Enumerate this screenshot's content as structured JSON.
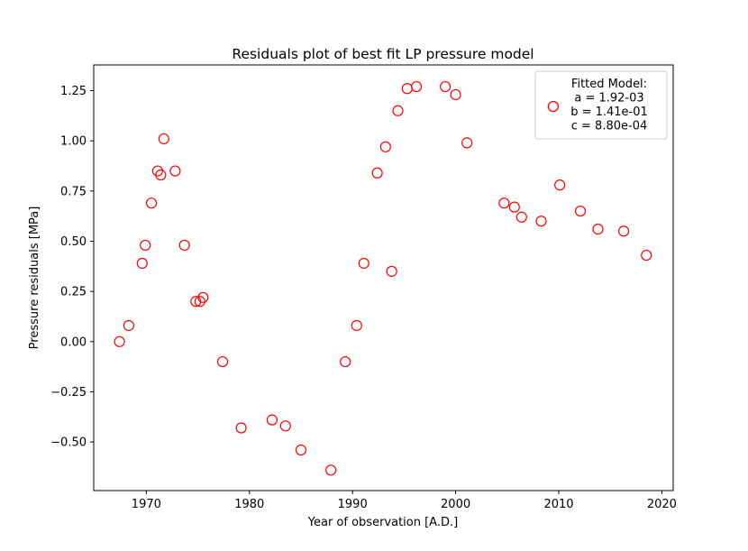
{
  "chart_data": {
    "type": "scatter",
    "title": "Residuals plot of best fit LP pressure model",
    "xlabel": "Year of observation [A.D.]",
    "ylabel": "Pressure residuals [MPa]",
    "xlim": [
      1964.9,
      2021.1
    ],
    "ylim": [
      -0.742,
      1.378
    ],
    "xticks": [
      1970,
      1980,
      1990,
      2000,
      2010,
      2020
    ],
    "yticks": [
      -0.5,
      -0.25,
      0.0,
      0.25,
      0.5,
      0.75,
      1.0,
      1.25
    ],
    "ytick_labels": [
      "−0.50",
      "−0.25",
      "0.00",
      "0.25",
      "0.50",
      "0.75",
      "1.00",
      "1.25"
    ],
    "grid": false,
    "legend_position": "top-right",
    "marker": "hollow-circle",
    "series_color": "#ff0000",
    "series": [
      {
        "name": "Fitted Model:\n a = 1.92-03\n b = 1.41e-01\n c = 8.80e-04",
        "legend_lines": [
          "Fitted Model:",
          "a = 1.92-03",
          "b = 1.41e-01",
          "c = 8.80e-04"
        ],
        "points": [
          [
            1967.4,
            0.0
          ],
          [
            1968.3,
            0.08
          ],
          [
            1969.6,
            0.39
          ],
          [
            1969.9,
            0.48
          ],
          [
            1970.5,
            0.69
          ],
          [
            1971.1,
            0.85
          ],
          [
            1971.4,
            0.83
          ],
          [
            1971.7,
            1.01
          ],
          [
            1972.8,
            0.85
          ],
          [
            1973.7,
            0.48
          ],
          [
            1974.8,
            0.2
          ],
          [
            1975.2,
            0.2
          ],
          [
            1975.5,
            0.22
          ],
          [
            1977.4,
            -0.1
          ],
          [
            1979.2,
            -0.43
          ],
          [
            1982.2,
            -0.39
          ],
          [
            1983.5,
            -0.42
          ],
          [
            1985.0,
            -0.54
          ],
          [
            1987.9,
            -0.64
          ],
          [
            1989.3,
            -0.1
          ],
          [
            1990.4,
            0.08
          ],
          [
            1991.1,
            0.39
          ],
          [
            1992.4,
            0.84
          ],
          [
            1993.2,
            0.97
          ],
          [
            1993.8,
            0.35
          ],
          [
            1994.4,
            1.15
          ],
          [
            1995.3,
            1.26
          ],
          [
            1996.2,
            1.27
          ],
          [
            1999.0,
            1.27
          ],
          [
            2000.0,
            1.23
          ],
          [
            2001.1,
            0.99
          ],
          [
            2004.7,
            0.69
          ],
          [
            2005.7,
            0.67
          ],
          [
            2006.4,
            0.62
          ],
          [
            2008.3,
            0.6
          ],
          [
            2009.4,
            1.17
          ],
          [
            2010.1,
            0.78
          ],
          [
            2012.1,
            0.65
          ],
          [
            2013.8,
            0.56
          ],
          [
            2016.3,
            0.55
          ],
          [
            2018.5,
            0.43
          ]
        ]
      }
    ]
  }
}
